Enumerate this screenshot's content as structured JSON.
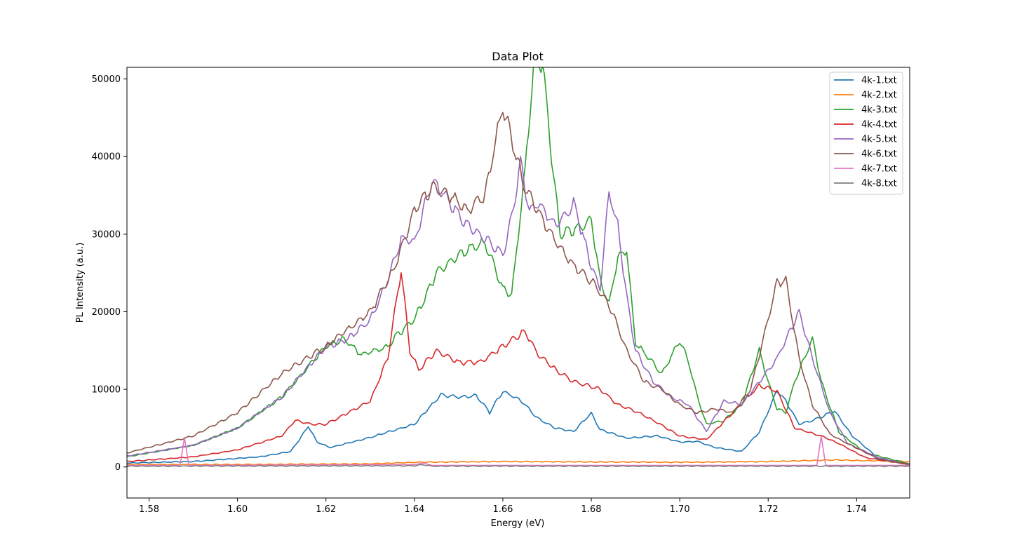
{
  "chart_data": {
    "type": "line",
    "title": "Data Plot",
    "xlabel": "Energy (eV)",
    "ylabel": "PL Intensity (a.u.)",
    "xlim": [
      1.575,
      1.752
    ],
    "ylim": [
      -4000,
      51500
    ],
    "x_ticks": [
      "1.58",
      "1.60",
      "1.62",
      "1.64",
      "1.66",
      "1.68",
      "1.70",
      "1.72",
      "1.74"
    ],
    "y_ticks": [
      "0",
      "10000",
      "20000",
      "30000",
      "40000",
      "50000"
    ],
    "legend_position": "upper right",
    "grid": false,
    "series": [
      {
        "name": "4k-1.txt",
        "color": "#1f77b4",
        "points": [
          [
            1.575,
            500
          ],
          [
            1.59,
            700
          ],
          [
            1.605,
            1300
          ],
          [
            1.612,
            2000
          ],
          [
            1.614,
            3500
          ],
          [
            1.616,
            5300
          ],
          [
            1.618,
            3200
          ],
          [
            1.621,
            2500
          ],
          [
            1.63,
            3800
          ],
          [
            1.64,
            5500
          ],
          [
            1.646,
            9300
          ],
          [
            1.65,
            9000
          ],
          [
            1.654,
            9200
          ],
          [
            1.657,
            7000
          ],
          [
            1.66,
            9800
          ],
          [
            1.664,
            8600
          ],
          [
            1.668,
            6200
          ],
          [
            1.672,
            5000
          ],
          [
            1.676,
            4600
          ],
          [
            1.68,
            6900
          ],
          [
            1.682,
            4800
          ],
          [
            1.688,
            3700
          ],
          [
            1.695,
            4000
          ],
          [
            1.7,
            3200
          ],
          [
            1.704,
            3300
          ],
          [
            1.708,
            2500
          ],
          [
            1.714,
            2000
          ],
          [
            1.718,
            4500
          ],
          [
            1.722,
            9800
          ],
          [
            1.724,
            8500
          ],
          [
            1.727,
            5500
          ],
          [
            1.73,
            6000
          ],
          [
            1.735,
            7200
          ],
          [
            1.739,
            4000
          ],
          [
            1.745,
            1100
          ],
          [
            1.752,
            300
          ]
        ]
      },
      {
        "name": "4k-2.txt",
        "color": "#ff7f0e",
        "points": [
          [
            1.575,
            300
          ],
          [
            1.6,
            320
          ],
          [
            1.63,
            400
          ],
          [
            1.64,
            600
          ],
          [
            1.66,
            700
          ],
          [
            1.68,
            650
          ],
          [
            1.7,
            600
          ],
          [
            1.72,
            700
          ],
          [
            1.735,
            900
          ],
          [
            1.752,
            700
          ]
        ]
      },
      {
        "name": "4k-3.txt",
        "color": "#2ca02c",
        "points": [
          [
            1.575,
            1300
          ],
          [
            1.59,
            2800
          ],
          [
            1.6,
            5000
          ],
          [
            1.61,
            9000
          ],
          [
            1.62,
            15500
          ],
          [
            1.624,
            16500
          ],
          [
            1.628,
            14500
          ],
          [
            1.634,
            15500
          ],
          [
            1.636,
            17000
          ],
          [
            1.64,
            19000
          ],
          [
            1.645,
            25000
          ],
          [
            1.652,
            28000
          ],
          [
            1.656,
            29000
          ],
          [
            1.66,
            23000
          ],
          [
            1.662,
            22000
          ],
          [
            1.665,
            38000
          ],
          [
            1.667,
            52000
          ],
          [
            1.669,
            52000
          ],
          [
            1.671,
            40000
          ],
          [
            1.673,
            30000
          ],
          [
            1.678,
            31000
          ],
          [
            1.68,
            32000
          ],
          [
            1.682,
            24000
          ],
          [
            1.684,
            21000
          ],
          [
            1.686,
            27000
          ],
          [
            1.688,
            28000
          ],
          [
            1.69,
            16000
          ],
          [
            1.696,
            12000
          ],
          [
            1.7,
            16300
          ],
          [
            1.702,
            13500
          ],
          [
            1.704,
            9000
          ],
          [
            1.706,
            5500
          ],
          [
            1.71,
            6000
          ],
          [
            1.714,
            8000
          ],
          [
            1.718,
            15000
          ],
          [
            1.72,
            11000
          ],
          [
            1.722,
            7500
          ],
          [
            1.724,
            7000
          ],
          [
            1.726,
            11000
          ],
          [
            1.73,
            16500
          ],
          [
            1.732,
            11000
          ],
          [
            1.736,
            4500
          ],
          [
            1.742,
            1800
          ],
          [
            1.752,
            400
          ]
        ]
      },
      {
        "name": "4k-4.txt",
        "color": "#d62728",
        "points": [
          [
            1.575,
            700
          ],
          [
            1.59,
            1300
          ],
          [
            1.6,
            2200
          ],
          [
            1.61,
            4000
          ],
          [
            1.613,
            6000
          ],
          [
            1.617,
            5500
          ],
          [
            1.62,
            5500
          ],
          [
            1.63,
            8500
          ],
          [
            1.634,
            14000
          ],
          [
            1.637,
            25500
          ],
          [
            1.639,
            15000
          ],
          [
            1.641,
            12500
          ],
          [
            1.645,
            15000
          ],
          [
            1.65,
            13500
          ],
          [
            1.655,
            13500
          ],
          [
            1.66,
            15500
          ],
          [
            1.665,
            17500
          ],
          [
            1.668,
            14500
          ],
          [
            1.672,
            12500
          ],
          [
            1.676,
            11000
          ],
          [
            1.682,
            10000
          ],
          [
            1.686,
            8000
          ],
          [
            1.69,
            7200
          ],
          [
            1.694,
            6000
          ],
          [
            1.7,
            4000
          ],
          [
            1.706,
            3500
          ],
          [
            1.712,
            7000
          ],
          [
            1.718,
            10500
          ],
          [
            1.722,
            9800
          ],
          [
            1.726,
            5000
          ],
          [
            1.732,
            4000
          ],
          [
            1.736,
            3000
          ],
          [
            1.742,
            1200
          ],
          [
            1.752,
            300
          ]
        ]
      },
      {
        "name": "4k-5.txt",
        "color": "#9467bd",
        "points": [
          [
            1.575,
            1400
          ],
          [
            1.59,
            2800
          ],
          [
            1.6,
            5000
          ],
          [
            1.61,
            9000
          ],
          [
            1.62,
            15500
          ],
          [
            1.625,
            16500
          ],
          [
            1.63,
            19000
          ],
          [
            1.634,
            24000
          ],
          [
            1.637,
            29500
          ],
          [
            1.64,
            29000
          ],
          [
            1.644,
            37000
          ],
          [
            1.648,
            34000
          ],
          [
            1.652,
            31000
          ],
          [
            1.656,
            29500
          ],
          [
            1.66,
            27500
          ],
          [
            1.662,
            32000
          ],
          [
            1.664,
            39500
          ],
          [
            1.666,
            33000
          ],
          [
            1.668,
            34000
          ],
          [
            1.672,
            31000
          ],
          [
            1.676,
            34000
          ],
          [
            1.68,
            26000
          ],
          [
            1.682,
            23000
          ],
          [
            1.684,
            35500
          ],
          [
            1.686,
            31000
          ],
          [
            1.688,
            22000
          ],
          [
            1.69,
            15000
          ],
          [
            1.694,
            11000
          ],
          [
            1.698,
            9000
          ],
          [
            1.702,
            8000
          ],
          [
            1.706,
            4600
          ],
          [
            1.71,
            8500
          ],
          [
            1.714,
            8000
          ],
          [
            1.718,
            11000
          ],
          [
            1.722,
            14000
          ],
          [
            1.727,
            20000
          ],
          [
            1.73,
            14000
          ],
          [
            1.734,
            7000
          ],
          [
            1.738,
            3000
          ],
          [
            1.745,
            1200
          ],
          [
            1.752,
            300
          ]
        ]
      },
      {
        "name": "4k-6.txt",
        "color": "#8c564b",
        "points": [
          [
            1.575,
            1800
          ],
          [
            1.59,
            4000
          ],
          [
            1.6,
            7000
          ],
          [
            1.61,
            12000
          ],
          [
            1.62,
            15500
          ],
          [
            1.63,
            20000
          ],
          [
            1.635,
            25000
          ],
          [
            1.64,
            33000
          ],
          [
            1.644,
            36000
          ],
          [
            1.648,
            35000
          ],
          [
            1.652,
            33000
          ],
          [
            1.656,
            35000
          ],
          [
            1.658,
            41000
          ],
          [
            1.66,
            46500
          ],
          [
            1.663,
            40000
          ],
          [
            1.665,
            36000
          ],
          [
            1.668,
            33000
          ],
          [
            1.672,
            29000
          ],
          [
            1.676,
            26000
          ],
          [
            1.68,
            24000
          ],
          [
            1.684,
            21000
          ],
          [
            1.688,
            15000
          ],
          [
            1.692,
            11000
          ],
          [
            1.696,
            10000
          ],
          [
            1.7,
            8000
          ],
          [
            1.704,
            7000
          ],
          [
            1.708,
            7500
          ],
          [
            1.712,
            7000
          ],
          [
            1.716,
            10000
          ],
          [
            1.72,
            19000
          ],
          [
            1.722,
            23800
          ],
          [
            1.724,
            24000
          ],
          [
            1.727,
            14000
          ],
          [
            1.73,
            8000
          ],
          [
            1.734,
            4200
          ],
          [
            1.738,
            3000
          ],
          [
            1.745,
            1000
          ],
          [
            1.752,
            300
          ]
        ]
      },
      {
        "name": "4k-7.txt",
        "color": "#e377c2",
        "points": [
          [
            1.575,
            200
          ],
          [
            1.587,
            200
          ],
          [
            1.588,
            3800
          ],
          [
            1.589,
            200
          ],
          [
            1.64,
            300
          ],
          [
            1.642,
            500
          ],
          [
            1.644,
            200
          ],
          [
            1.731,
            200
          ],
          [
            1.732,
            4000
          ],
          [
            1.733,
            200
          ],
          [
            1.752,
            200
          ]
        ]
      },
      {
        "name": "4k-8.txt",
        "color": "#7f7f7f",
        "points": [
          [
            1.575,
            100
          ],
          [
            1.64,
            150
          ],
          [
            1.642,
            300
          ],
          [
            1.644,
            100
          ],
          [
            1.752,
            100
          ]
        ]
      }
    ]
  }
}
